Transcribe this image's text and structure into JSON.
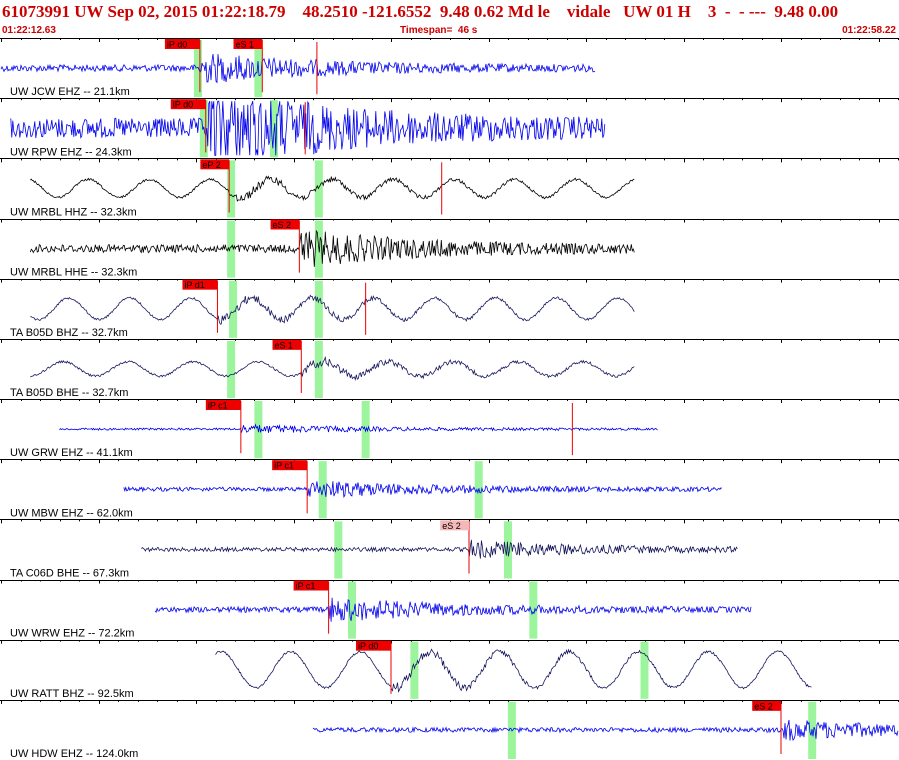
{
  "header": {
    "title": "61073991 UW Sep 02, 2015 01:22:18.79    48.2510 -121.6552  9.48 0.62 Md le    vidale   UW 01 H    3  -  - ---  9.48 0.00",
    "start_time": "01:22:12.63",
    "timespan": "Timespan=  46 s",
    "end_time": "01:22:58.22"
  },
  "colors": {
    "background": "#ffffff",
    "header_text": "#cc0000",
    "trace_short_period": "#0000ee",
    "trace_broadband_black": "#000000",
    "trace_broadband_navy": "#1a1a60",
    "pick_red": "#ee0000",
    "pick_pink": "#f4b8b8",
    "window_green": "#9cf59c",
    "theoretical_curve": "#000000",
    "grid": "#000000"
  },
  "chart_data": {
    "type": "seismogram",
    "time_axis": {
      "start": "01:22:12.63",
      "end": "01:22:58.22",
      "span_s": 46,
      "tick_interval_s": 1
    },
    "traces": [
      {
        "label": "UW JCW EHZ -- 21.1km",
        "color": "#0000ee",
        "t_start": 0.0,
        "t_end": 30.5,
        "amp": 0.1,
        "freq": 4.0,
        "picks": [
          {
            "label": "iP d0",
            "time": 10.2,
            "style": "red"
          },
          {
            "label": "eS 1",
            "time": 13.4,
            "style": "red"
          }
        ],
        "windows": [
          10.1,
          13.2
        ],
        "event_marks": [
          16.2
        ]
      },
      {
        "label": "UW RPW EHZ -- 24.3km",
        "color": "#0000ee",
        "t_start": 0.5,
        "t_end": 31.0,
        "amp": 0.3,
        "freq": 4.0,
        "picks": [
          {
            "label": "iP d0",
            "time": 10.5,
            "style": "red"
          }
        ],
        "windows": [
          10.4,
          14.0
        ],
        "event_marks": [
          15.6
        ]
      },
      {
        "label": "UW MRBL HHZ -- 32.3km",
        "color": "#000000",
        "t_start": 1.5,
        "t_end": 32.5,
        "amp": 0.15,
        "freq": 0.32,
        "picks": [
          {
            "label": "eP 2",
            "time": 11.7,
            "style": "red"
          }
        ],
        "windows": [
          11.8,
          16.3
        ],
        "event_marks": [
          22.6
        ]
      },
      {
        "label": "UW MRBL HHE -- 32.3km",
        "color": "#000000",
        "t_start": 1.5,
        "t_end": 32.5,
        "amp": 0.12,
        "freq": 4.0,
        "picks": [
          {
            "label": "eS 2",
            "time": 15.3,
            "style": "red"
          }
        ],
        "windows": [
          11.8,
          16.3
        ],
        "event_marks": []
      },
      {
        "label": "TA B05D BHZ -- 32.7km",
        "color": "#1a1a60",
        "t_start": 1.5,
        "t_end": 32.5,
        "amp": 0.18,
        "freq": 0.32,
        "picks": [
          {
            "label": "iP d1",
            "time": 11.1,
            "style": "red"
          }
        ],
        "windows": [
          11.9,
          16.3
        ],
        "event_marks": [
          18.7
        ]
      },
      {
        "label": "TA B05D BHE -- 32.7km",
        "color": "#1a1a60",
        "t_start": 1.5,
        "t_end": 32.5,
        "amp": 0.12,
        "freq": 0.3,
        "picks": [
          {
            "label": "eS 1",
            "time": 15.4,
            "style": "red"
          }
        ],
        "windows": [
          11.8,
          16.3
        ],
        "event_marks": []
      },
      {
        "label": "UW GRW EHZ -- 41.1km",
        "color": "#0000ee",
        "t_start": 3.0,
        "t_end": 33.7,
        "amp": 0.03,
        "freq": 4.0,
        "picks": [
          {
            "label": "iP c1",
            "time": 12.3,
            "style": "red"
          }
        ],
        "windows": [
          13.2,
          18.7
        ],
        "event_marks": [
          29.3
        ]
      },
      {
        "label": "UW MBW EHZ -- 62.0km",
        "color": "#0000ee",
        "t_start": 6.3,
        "t_end": 37.0,
        "amp": 0.06,
        "freq": 4.0,
        "picks": [
          {
            "label": "iP c1",
            "time": 15.7,
            "style": "red"
          }
        ],
        "windows": [
          16.5,
          24.5
        ],
        "event_marks": []
      },
      {
        "label": "TA C06D BHE -- 67.3km",
        "color": "#1a1a60",
        "t_start": 7.2,
        "t_end": 37.8,
        "amp": 0.06,
        "freq": 4.0,
        "picks": [
          {
            "label": "eS 2",
            "time": 24.0,
            "style": "pink"
          }
        ],
        "windows": [
          17.3,
          26.0
        ],
        "event_marks": []
      },
      {
        "label": "UW WRW EHZ -- 72.2km",
        "color": "#0000ee",
        "t_start": 7.9,
        "t_end": 38.5,
        "amp": 0.08,
        "freq": 4.0,
        "picks": [
          {
            "label": "iP c1",
            "time": 16.8,
            "style": "red"
          }
        ],
        "windows": [
          18.0,
          27.3
        ],
        "event_marks": []
      },
      {
        "label": "UW RATT BHZ -- 92.5km",
        "color": "#1a1a60",
        "t_start": 11.0,
        "t_end": 41.6,
        "amp": 0.3,
        "freq": 0.28,
        "picks": [
          {
            "label": "iP d0",
            "time": 20.0,
            "style": "red"
          }
        ],
        "windows": [
          21.2,
          33.0
        ],
        "event_marks": []
      },
      {
        "label": "UW HDW EHZ -- 124.0km",
        "color": "#0000ee",
        "t_start": 16.0,
        "t_end": 46.0,
        "amp": 0.07,
        "freq": 4.0,
        "picks": [
          {
            "label": "eS 2",
            "time": 40.0,
            "style": "red"
          }
        ],
        "windows": [
          26.2,
          41.6
        ],
        "event_marks": []
      }
    ]
  }
}
